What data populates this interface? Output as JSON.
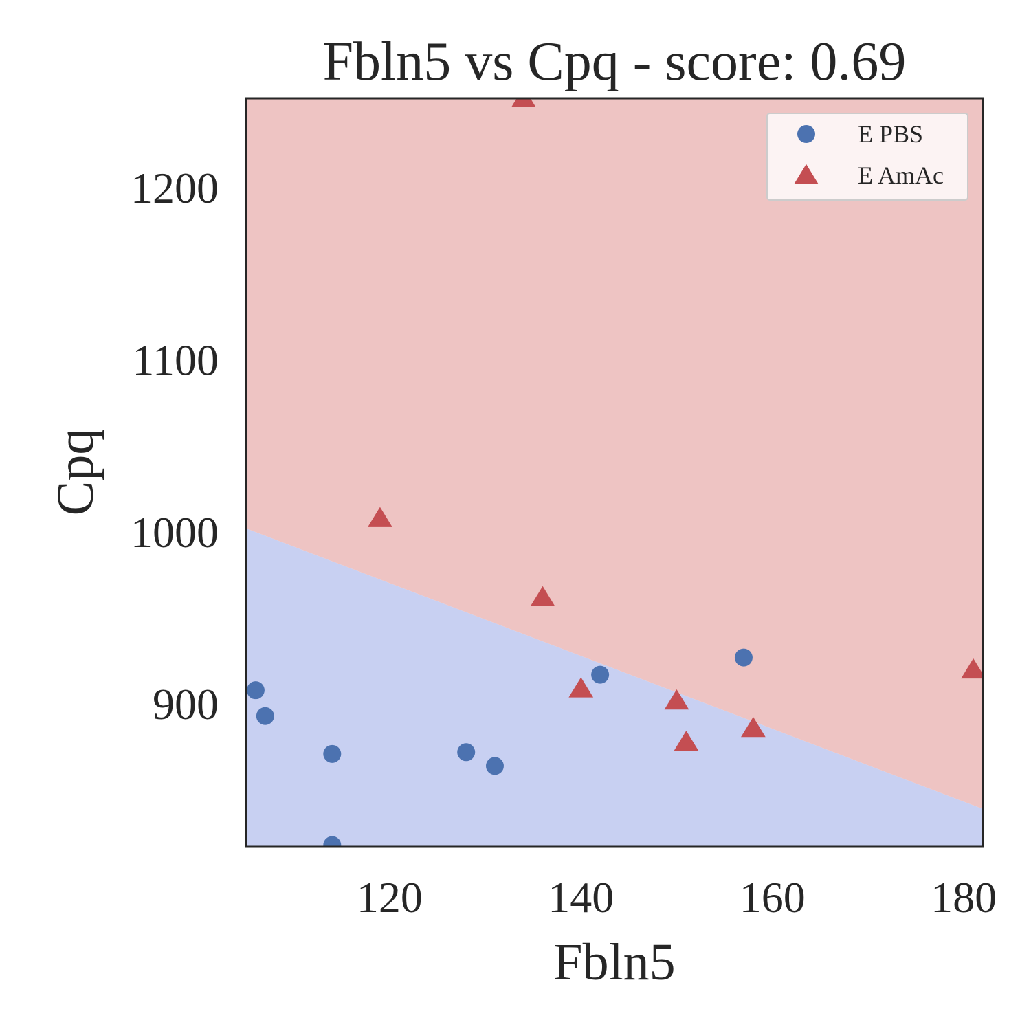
{
  "chart_data": {
    "type": "scatter",
    "title": "Fbln5 vs Cpq - score: 0.69",
    "xlabel": "Fbln5",
    "ylabel": "Cpq",
    "xlim": [
      105,
      182
    ],
    "ylim": [
      817,
      1252
    ],
    "xticks": [
      120,
      140,
      160,
      180
    ],
    "yticks": [
      900,
      1000,
      1100,
      1200
    ],
    "grid": false,
    "legend_position": "top-right",
    "decision_boundary": {
      "points": [
        [
          105,
          1002
        ],
        [
          182,
          839
        ]
      ],
      "region_colors": {
        "below": "#c8d0f2",
        "above": "#eec4c3"
      }
    },
    "series": [
      {
        "name": "E PBS",
        "marker": "circle",
        "color": "#4c72b0",
        "points": [
          [
            106,
            908
          ],
          [
            107,
            893
          ],
          [
            114,
            871
          ],
          [
            114,
            818
          ],
          [
            128,
            872
          ],
          [
            131,
            864
          ],
          [
            142,
            917
          ],
          [
            157,
            927
          ]
        ]
      },
      {
        "name": "E AmAc",
        "marker": "triangle",
        "color": "#c44e52",
        "points": [
          [
            134,
            1252
          ],
          [
            119,
            1008
          ],
          [
            136,
            962
          ],
          [
            140,
            909
          ],
          [
            150,
            902
          ],
          [
            151,
            878
          ],
          [
            158,
            886
          ],
          [
            181,
            920
          ]
        ]
      }
    ]
  }
}
